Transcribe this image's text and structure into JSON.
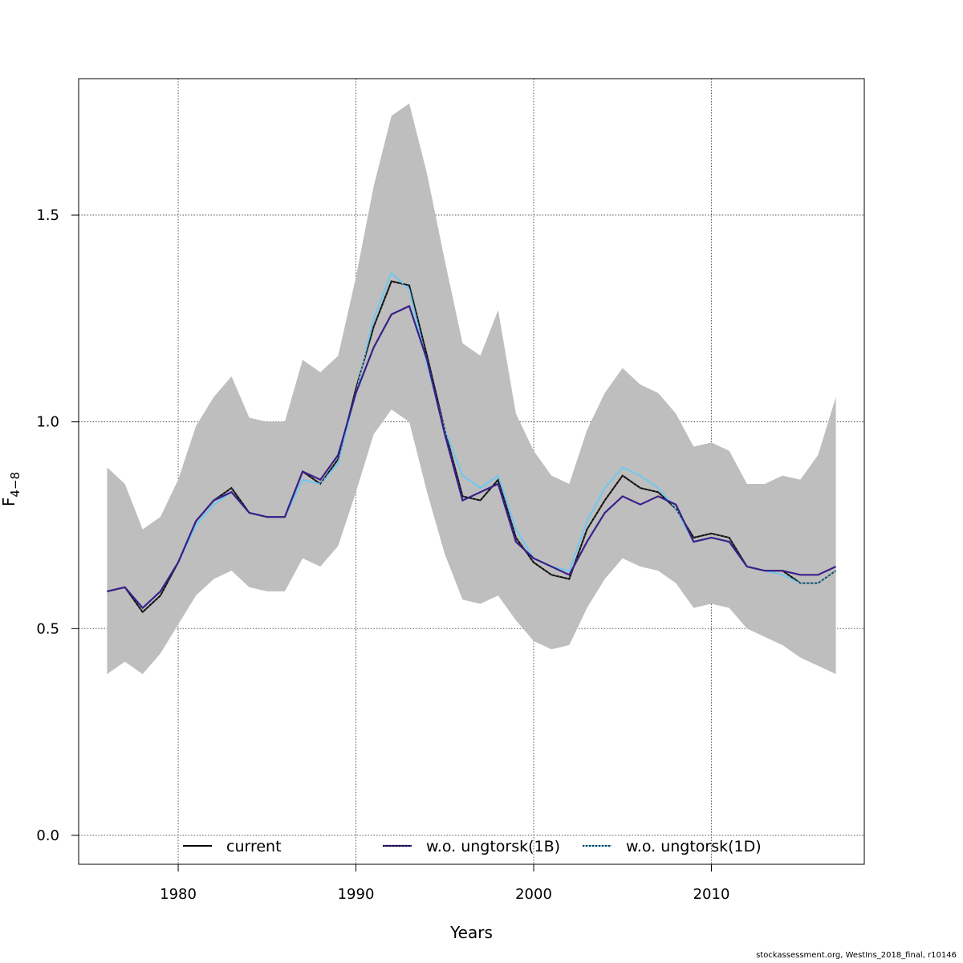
{
  "chart_data": {
    "type": "line",
    "xlabel": "Years",
    "ylabel": "F",
    "ylabel_subscript": "4−8",
    "xlim": [
      1974.4,
      2018.6
    ],
    "ylim": [
      -0.07,
      1.83
    ],
    "xticks": [
      1980,
      1990,
      2000,
      2010
    ],
    "yticks": [
      0.0,
      0.5,
      1.0,
      1.5
    ],
    "ytick_labels": [
      "0.0",
      "0.5",
      "1.0",
      "1.5"
    ],
    "grid": true,
    "legend_position": "bottom",
    "x": [
      1976,
      1977,
      1978,
      1979,
      1980,
      1981,
      1982,
      1983,
      1984,
      1985,
      1986,
      1987,
      1988,
      1989,
      1990,
      1991,
      1992,
      1993,
      1994,
      1995,
      1996,
      1997,
      1998,
      1999,
      2000,
      2001,
      2002,
      2003,
      2004,
      2005,
      2006,
      2007,
      2008,
      2009,
      2010,
      2011,
      2012,
      2013,
      2014,
      2015,
      2016,
      2017
    ],
    "band": {
      "color": "#bebebe",
      "upper": [
        0.89,
        0.85,
        0.74,
        0.77,
        0.86,
        0.99,
        1.06,
        1.11,
        1.01,
        1.0,
        1.0,
        1.15,
        1.12,
        1.16,
        1.35,
        1.57,
        1.74,
        1.77,
        1.6,
        1.39,
        1.19,
        1.16,
        1.27,
        1.02,
        0.93,
        0.87,
        0.85,
        0.98,
        1.07,
        1.13,
        1.09,
        1.07,
        1.02,
        0.94,
        0.95,
        0.93,
        0.85,
        0.85,
        0.87,
        0.86,
        0.92,
        1.06
      ],
      "lower": [
        0.39,
        0.42,
        0.39,
        0.44,
        0.51,
        0.58,
        0.62,
        0.64,
        0.6,
        0.59,
        0.59,
        0.67,
        0.65,
        0.7,
        0.83,
        0.97,
        1.03,
        1.0,
        0.83,
        0.68,
        0.57,
        0.56,
        0.58,
        0.52,
        0.47,
        0.45,
        0.46,
        0.55,
        0.62,
        0.67,
        0.65,
        0.64,
        0.61,
        0.55,
        0.56,
        0.55,
        0.5,
        0.48,
        0.46,
        0.43,
        0.41,
        0.39
      ]
    },
    "series": [
      {
        "name": "current",
        "color": "#000000",
        "style": "solid",
        "values": [
          0.59,
          0.6,
          0.54,
          0.58,
          0.66,
          0.76,
          0.81,
          0.84,
          0.78,
          0.77,
          0.77,
          0.88,
          0.85,
          0.91,
          1.08,
          1.23,
          1.34,
          1.33,
          1.16,
          0.98,
          0.82,
          0.81,
          0.86,
          0.72,
          0.66,
          0.63,
          0.62,
          0.74,
          0.81,
          0.87,
          0.84,
          0.83,
          0.79,
          0.72,
          0.73,
          0.72,
          0.65,
          0.64,
          0.64,
          0.61,
          0.61,
          0.64
        ]
      },
      {
        "name": "w.o. ungtorsk(1B)",
        "color": "#3b1f8a",
        "style": "solid",
        "values": [
          0.59,
          0.6,
          0.55,
          0.59,
          0.66,
          0.76,
          0.81,
          0.83,
          0.78,
          0.77,
          0.77,
          0.88,
          0.86,
          0.92,
          1.07,
          1.18,
          1.26,
          1.28,
          1.15,
          0.97,
          0.81,
          0.83,
          0.85,
          0.71,
          0.67,
          0.65,
          0.63,
          0.71,
          0.78,
          0.82,
          0.8,
          0.82,
          0.8,
          0.71,
          0.72,
          0.71,
          0.65,
          0.64,
          0.64,
          0.63,
          0.63,
          0.65
        ]
      },
      {
        "name": "w.o. ungtorsk(1D)",
        "color": "#6cc9f0",
        "style": "dotted",
        "values": [
          0.59,
          0.6,
          0.55,
          0.59,
          0.66,
          0.75,
          0.8,
          0.83,
          0.78,
          0.77,
          0.77,
          0.86,
          0.85,
          0.9,
          1.07,
          1.25,
          1.36,
          1.32,
          1.14,
          0.98,
          0.87,
          0.84,
          0.87,
          0.74,
          0.67,
          0.65,
          0.64,
          0.76,
          0.84,
          0.89,
          0.87,
          0.84,
          0.79,
          0.71,
          0.72,
          0.71,
          0.65,
          0.64,
          0.63,
          0.61,
          0.61,
          0.64
        ]
      }
    ]
  },
  "footer": "stockassessment.org, WestIns_2018_final, r10146"
}
